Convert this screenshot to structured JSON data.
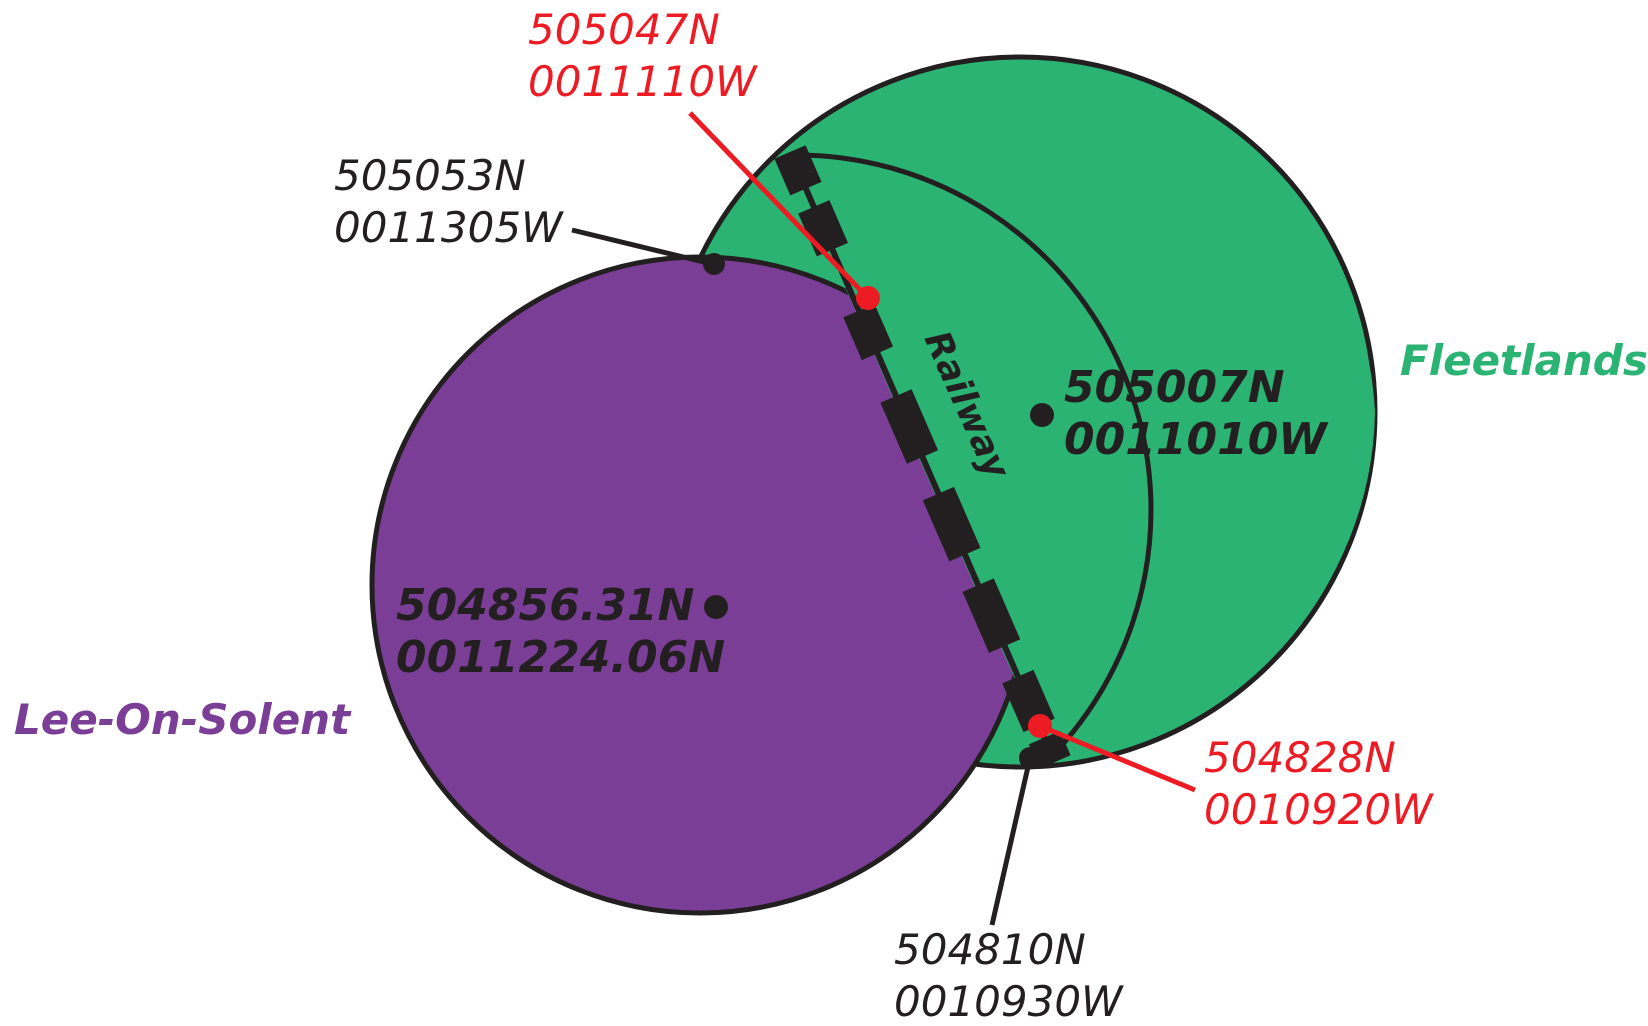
{
  "zones": {
    "fleetlands": {
      "name": "Fleetlands",
      "color": "#2bb373"
    },
    "lee_on_solent": {
      "name": "Lee-On-Solent",
      "color": "#7b3e96"
    }
  },
  "centers": {
    "fleetlands": {
      "lat": "505007N",
      "lon": "0011010W"
    },
    "lee_on_solent": {
      "lat": "504856.31N",
      "lon": "0011224.06N"
    }
  },
  "points": {
    "nw_black": {
      "lat": "505053N",
      "lon": "0011305W"
    },
    "nw_red": {
      "lat": "505047N",
      "lon": "0011110W"
    },
    "se_red": {
      "lat": "504828N",
      "lon": "0010920W"
    },
    "s_black": {
      "lat": "504810N",
      "lon": "0010930W"
    }
  },
  "railway": {
    "label": "Railway"
  },
  "colors": {
    "outline": "#231f20",
    "red": "#ed1c24"
  }
}
